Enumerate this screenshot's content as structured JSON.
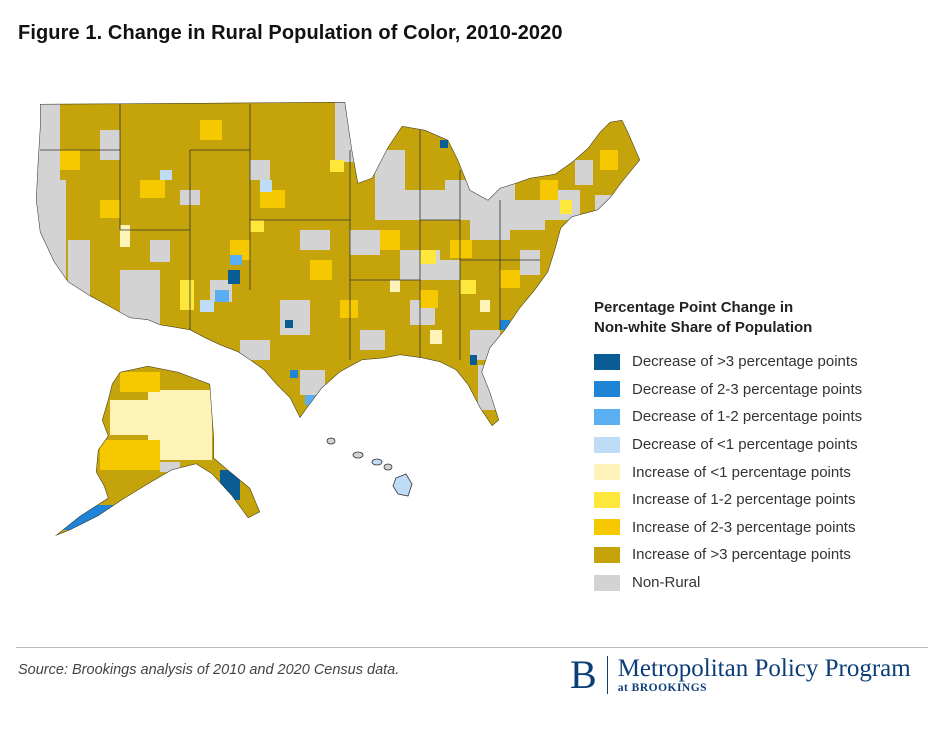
{
  "title": "Figure 1. Change in Rural Population of Color, 2010-2020",
  "legend": {
    "title_line1": "Percentage Point Change in",
    "title_line2": "Non-white Share of Population",
    "items": [
      {
        "label": "Decrease of >3 percentage points",
        "color": "#0a5d94"
      },
      {
        "label": "Decrease of 2-3 percentage points",
        "color": "#1f84d6"
      },
      {
        "label": "Decrease of 1-2 percentage points",
        "color": "#5aaef2"
      },
      {
        "label": "Decrease of <1 percentage points",
        "color": "#bfdcf7"
      },
      {
        "label": "Increase of <1 percentage points",
        "color": "#fdf3b8"
      },
      {
        "label": "Increase of 1-2 percentage points",
        "color": "#fce73a"
      },
      {
        "label": "Increase of 2-3 percentage points",
        "color": "#f5c800"
      },
      {
        "label": "Increase of >3 percentage points",
        "color": "#c4a40a"
      },
      {
        "label": "Non-Rural",
        "color": "#d3d3d3"
      }
    ]
  },
  "source": "Source: Brookings analysis of 2010 and 2020 Census data.",
  "brand": {
    "letter": "B",
    "name": "Metropolitan Policy Program",
    "sub": "at BROOKINGS"
  }
}
